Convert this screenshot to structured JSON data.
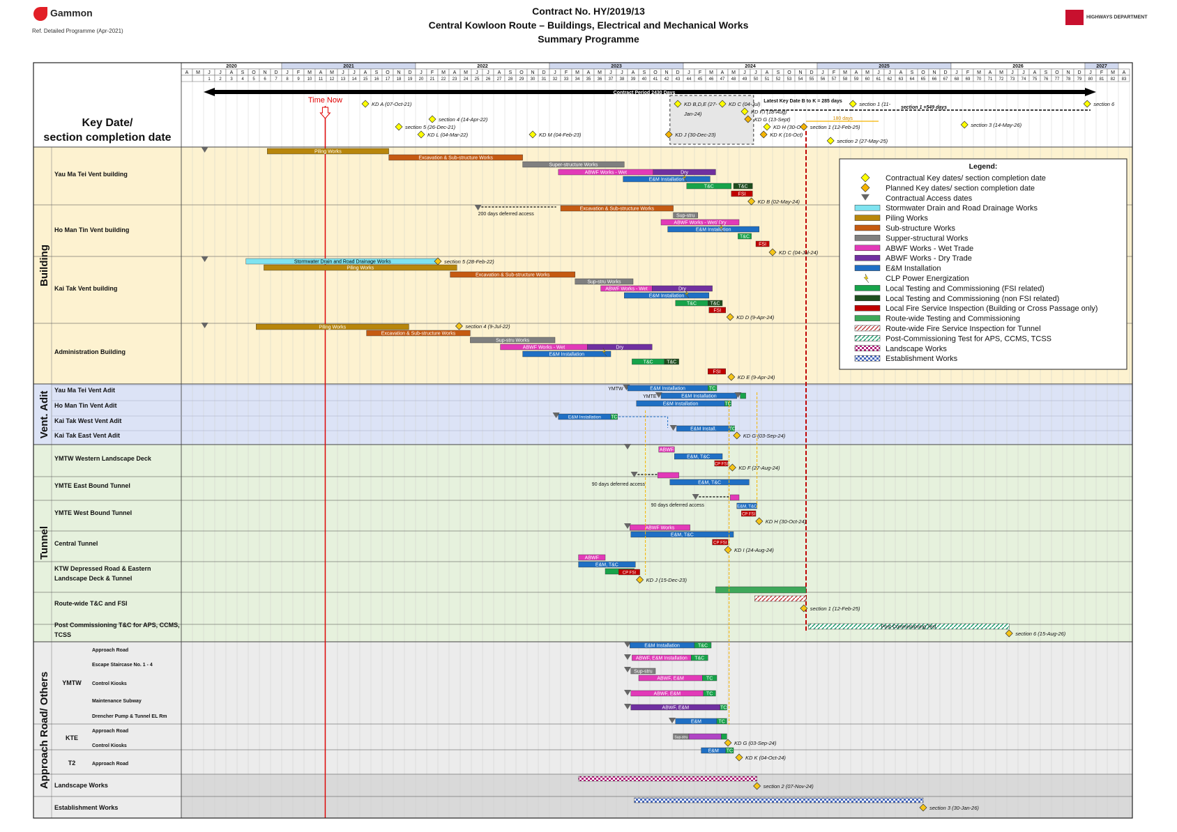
{
  "header": {
    "company": "Gammon",
    "ref": "Ref. Detailed Programme (Apr-2021)",
    "contract": "Contract No. HY/2019/13",
    "project": "Central Kowloon Route – Buildings, Electrical and Mechanical Works",
    "subtitle": "Summary Programme",
    "client": "HIGHWAYS DEPARTMENT"
  },
  "timeline": {
    "years": [
      {
        "label": "2020",
        "start": 1,
        "span": 9
      },
      {
        "label": "2021",
        "start": 10,
        "span": 12
      },
      {
        "label": "2022",
        "start": 22,
        "span": 12
      },
      {
        "label": "2023",
        "start": 34,
        "span": 12
      },
      {
        "label": "2024",
        "start": 46,
        "span": 12
      },
      {
        "label": "2025",
        "start": 58,
        "span": 12
      },
      {
        "label": "2026",
        "start": 70,
        "span": 12
      },
      {
        "label": "2027",
        "start": 82,
        "span": 3
      }
    ],
    "months": [
      "A",
      "M",
      "J",
      "J",
      "A",
      "S",
      "O",
      "N",
      "D",
      "J",
      "F",
      "M",
      "A",
      "M",
      "J",
      "J",
      "A",
      "S",
      "O",
      "N",
      "D",
      "J",
      "F",
      "M",
      "A",
      "M",
      "J",
      "J",
      "A",
      "S",
      "O",
      "N",
      "D",
      "J",
      "F",
      "M",
      "A",
      "M",
      "J",
      "J",
      "A",
      "S",
      "O",
      "N",
      "D",
      "J",
      "F",
      "M",
      "A",
      "M",
      "J",
      "J",
      "A",
      "S",
      "O",
      "N",
      "D",
      "J",
      "F",
      "M",
      "A",
      "M",
      "J",
      "J",
      "A",
      "S",
      "O",
      "N",
      "D",
      "J",
      "F",
      "M",
      "A",
      "M",
      "J",
      "J",
      "A",
      "S",
      "O",
      "N",
      "D",
      "J",
      "F",
      "M",
      "A"
    ],
    "month_numbers_start": 1,
    "month_numbers_end": 83,
    "time_now_label": "Time Now",
    "time_now_col": 12.9,
    "contract_period": "Contract Period 2430 Days",
    "latest_key_date": "Latest Key Date B to K = 285 days",
    "s1_549": "section 1 +549 days",
    "d180": "180 days",
    "key_dates_label": "Key Date/ section completion date"
  },
  "groups": [
    {
      "label": "Building",
      "color": "#fdf2d0"
    },
    {
      "label": "Vent. Adit",
      "color": "#dce3f6"
    },
    {
      "label": "Tunnel",
      "color": "#e6f1dd"
    },
    {
      "label": "Approach Road/ Others",
      "color": "#ececec"
    }
  ],
  "rows": {
    "r0": "Yau Ma Tei Vent building",
    "r1": "Ho Man Tin Vent building",
    "r2": "Kai Tak Vent building",
    "r3": "Administration Building",
    "r4": "Yau Ma Tei Vent Adit",
    "r5": "Ho Man Tin Vent Adit",
    "r6": "Kai Tak West Vent Adit",
    "r7": "Kai Tak East Vent Adit",
    "r8": "YMTW Western Landscape Deck",
    "r9": "YMTE East Bound Tunnel",
    "r10": "YMTE West Bound Tunnel",
    "r11": "Central Tunnel",
    "r12a": "KTW Depressed Road & Eastern",
    "r12b": "Landscape Deck & Tunnel",
    "r13": "Route-wide T&C and FSI",
    "r14a": "Post Commissioning T&C for APS, CCMS,",
    "r14b": "TCSS",
    "sub_ymtw": "YMTW",
    "sub_kte": "KTE",
    "sub_t2": "T2",
    "s0": "Approach Road",
    "s1": "Escape Staircase No. 1 - 4",
    "s2": "Control Kiosks",
    "s3": "Maintenance Subway",
    "s4": "Drencher Pump & Tunnel EL Rm",
    "s5": "Approach Road",
    "s6": "Control Kiosks",
    "s7": "Approach Road",
    "r15": "Landscape Works",
    "r16": "Establishment Works"
  },
  "bar_labels": {
    "piling": "Piling Works",
    "exc": "Excavation & Sub-structure Works",
    "super": "Super-structure Works",
    "wet": "ABWF Works - Wet",
    "dry": "Dry",
    "em": "E&M Installation",
    "tc": "T&C",
    "fsi": "FSI",
    "supstru": "Sup-stru",
    "supstru2": "Sup-stru Works",
    "wetdry": "ABWF Works - Wet/ Dry",
    "storm": "Stormwater Drain and Road Drainage Works",
    "ymtw": "YMTW",
    "ymte": "YMTE",
    "tc2": "TC",
    "eminst": "E&M Install.",
    "abwf": "ABWF",
    "emtc": "E&M, T&C",
    "cpfsi": "CP FSI",
    "abwfworks": "ABWF Works",
    "abwfem": "ABWF, E&M Installation",
    "abwfem2": "ABWF, E&M",
    "em2": "E&M",
    "postcomm": "Post-Commissioning Test",
    "def200": "200 days deferred access",
    "def90a": "90 days deferred access",
    "def90b": "90 days deferred access"
  },
  "milestones": {
    "kda": "KD A (07-Oct-21)",
    "sec4": "section 4 (14-Apr-22)",
    "sec5": "section 5 (26-Dec-21)",
    "kdl": "KD L (04-Mar-22)",
    "kdm": "KD M (04-Feb-23)",
    "kdbde": "KD B,D,E (27-",
    "kdbde2": "Jan-24)",
    "kdc": "KD C (04-Jul)",
    "kdfj": "KD F,I (18-Aug)",
    "kdg": "KD G (13-Sept)",
    "kdh": "KD H (30-O",
    "kdk": "KD K (16-Oct)",
    "kdj": "KD J (30-Dec-23)",
    "sec1p": "section 1 (12-Feb-25)",
    "sec1c": "section 1 (11-",
    "sec6": "section 6",
    "sec3p": "section 3 (14-May-26)",
    "sec2p": "section 2 (27-May-25)",
    "kdb": "KD B (02-May-24)",
    "kdc2": "KD C (04-Jul-24)",
    "sec5b": "section 5 (28-Feb-22)",
    "kdd": "KD D (9-Apr-24)",
    "sec4b": "section 4 (9-Jul-22)",
    "kde": "KD E (9-Apr-24)",
    "kdg2": "KD G (03-Sep-24)",
    "kdf": "KD F (27-Aug-24)",
    "kdh2": "KD H (30-Oct-24)",
    "kdi": "KD I (24-Aug-24)",
    "kdj2": "KD J (15-Dec-23)",
    "sec1b": "section 1 (12-Feb-25)",
    "sec6b": "section 6 (15-Aug-26)",
    "kdg3": "KD G (03-Sep-24)",
    "kdk2": "KD K (04-Oct-24)",
    "sec2b": "section 2 (07-Nov-24)",
    "sec3b": "section 3 (30-Jan-26)"
  },
  "legend": {
    "title": "Legend:",
    "items": [
      {
        "text": "Contractual Key dates/ section completion date",
        "kind": "dia",
        "color": "#ffff00"
      },
      {
        "text": "Planned Key dates/ section completion date",
        "kind": "dia",
        "color": "#f5b400"
      },
      {
        "text": "Contractual Access dates",
        "kind": "tri",
        "color": "#666666"
      },
      {
        "text": "Stormwater Drain and Road Drainage Works",
        "kind": "bar",
        "color": "#7fe3f0"
      },
      {
        "text": "Piling Works",
        "kind": "bar",
        "color": "#b8860b"
      },
      {
        "text": "Sub-structure Works",
        "kind": "bar",
        "color": "#c55a11"
      },
      {
        "text": "Supper-structural Works",
        "kind": "bar",
        "color": "#7f7f7f"
      },
      {
        "text": "ABWF Works - Wet Trade",
        "kind": "bar",
        "color": "#e23ab8"
      },
      {
        "text": "ABWF Works - Dry Trade",
        "kind": "bar",
        "color": "#7030a0"
      },
      {
        "text": "E&M Installation",
        "kind": "bar",
        "color": "#1f6fc4"
      },
      {
        "text": "CLP Power Energization",
        "kind": "bolt",
        "color": "#ffd700"
      },
      {
        "text": "Local Testing and Commissioning (FSI related)",
        "kind": "bar",
        "color": "#17a34a"
      },
      {
        "text": "Local Testing and Commissioning (non FSI related)",
        "kind": "bar",
        "color": "#1e4d1e"
      },
      {
        "text": "Local Fire Service Inspection (Building or Cross Passage only)",
        "kind": "bar",
        "color": "#c00000"
      },
      {
        "text": "Route-wide Testing and Commissioning",
        "kind": "bar",
        "color": "#3ea85a"
      },
      {
        "text": "Route-wide Fire Service Inspection for Tunnel",
        "kind": "hatch",
        "color": "#c04040"
      },
      {
        "text": "Post-Commissioning Test for APS, CCMS, TCSS",
        "kind": "hatch",
        "color": "#1a9a6a"
      },
      {
        "text": "Landscape Works",
        "kind": "check",
        "color": "#b0207a"
      },
      {
        "text": "Establishment Works",
        "kind": "check",
        "color": "#4466bb"
      }
    ]
  },
  "colors": {
    "piling": "#b8860b",
    "exc": "#c55a11",
    "super": "#7f7f7f",
    "wet": "#e23ab8",
    "dry": "#7030a0",
    "em": "#1f6fc4",
    "tcf": "#17a34a",
    "tcn": "#1e4d1e",
    "fsi": "#c00000",
    "storm": "#7fe3f0",
    "now": "#e00000"
  }
}
